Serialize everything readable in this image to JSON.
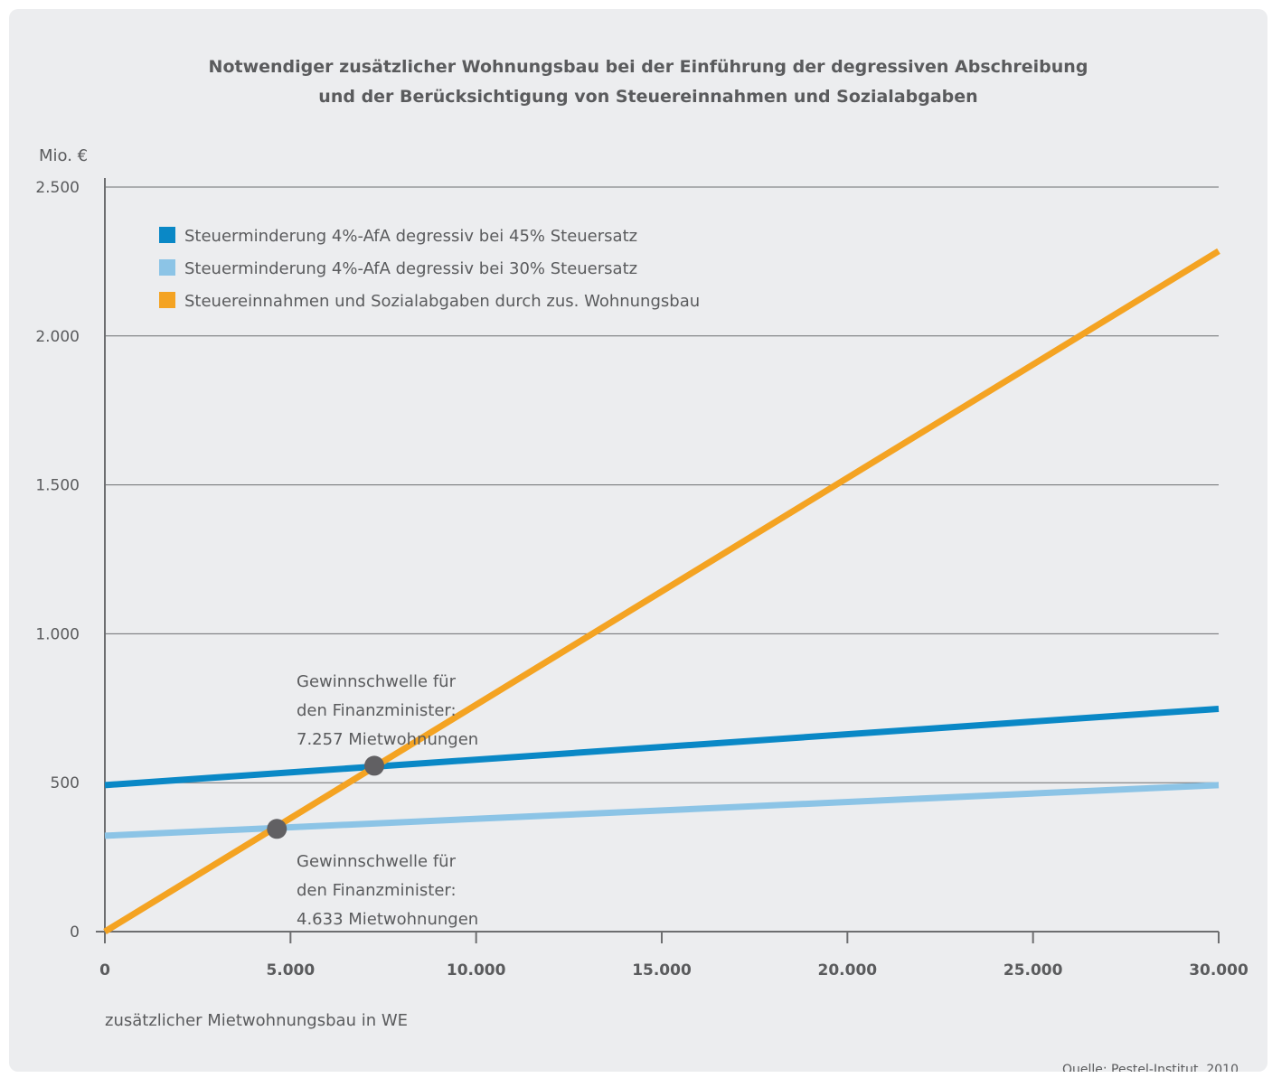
{
  "chart_data": {
    "type": "line",
    "title": [
      "Notwendiger zusätzlicher Wohnungsbau bei der Einführung der degressiven Abschreibung",
      "und der Berücksichtigung von Steuereinnahmen und Sozialabgaben"
    ],
    "ylabel": "Mio. €",
    "xlabel": "zusätzlicher Mietwohnungsbau in WE",
    "xlim": [
      0,
      30000
    ],
    "ylim": [
      0,
      2500
    ],
    "x_ticks": [
      0,
      5000,
      10000,
      15000,
      20000,
      25000,
      30000
    ],
    "x_tick_labels": [
      "0",
      "5.000",
      "10.000",
      "15.000",
      "20.000",
      "25.000",
      "30.000"
    ],
    "y_ticks": [
      0,
      500,
      1000,
      1500,
      2000,
      2500
    ],
    "y_tick_labels": [
      "0",
      "500",
      "1.000",
      "1.500",
      "2.000",
      "2.500"
    ],
    "grid": "horizontal",
    "legend_position": "top-left",
    "series": [
      {
        "name": "Steuerminderung 4%-AfA degressiv bei 45% Steuersatz",
        "color": "#0a88c6",
        "x": [
          0,
          30000
        ],
        "y": [
          492,
          748
        ]
      },
      {
        "name": "Steuerminderung 4%-AfA degressiv bei 30% Steuersatz",
        "color": "#8cc4e6",
        "x": [
          0,
          30000
        ],
        "y": [
          322,
          492
        ]
      },
      {
        "name": "Steuereinnahmen und Sozialabgaben durch zus. Wohnungsbau",
        "color": "#f4a322",
        "x": [
          0,
          30000
        ],
        "y": [
          0,
          2285
        ]
      }
    ],
    "points": [
      {
        "x": 7257,
        "y": 557,
        "color": "#616063"
      },
      {
        "x": 4633,
        "y": 345,
        "color": "#616063"
      }
    ],
    "annotations": [
      {
        "lines": [
          "Gewinnschwelle für",
          "den Finanzminister:",
          "7.257 Mietwohnungen"
        ]
      },
      {
        "lines": [
          "Gewinnschwelle für",
          "den Finanzminister:",
          "4.633 Mietwohnungen"
        ]
      }
    ],
    "source": "Quelle: Pestel-Institut, 2010"
  }
}
